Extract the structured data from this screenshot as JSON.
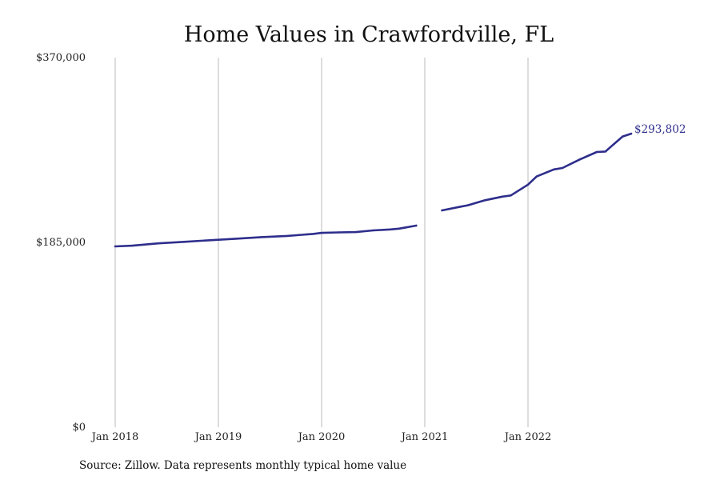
{
  "chart_data": {
    "type": "line",
    "title": "Home Values in Crawfordville, FL",
    "xlabel": "",
    "ylabel": "",
    "ylim": [
      0,
      370000
    ],
    "y_ticks": [
      {
        "value": 0,
        "label": "$0"
      },
      {
        "value": 185000,
        "label": "$185,000"
      },
      {
        "value": 370000,
        "label": "$370,000"
      }
    ],
    "x_ticks": [
      {
        "value": "2018-01",
        "label": "Jan 2018"
      },
      {
        "value": "2019-01",
        "label": "Jan 2019"
      },
      {
        "value": "2020-01",
        "label": "Jan 2020"
      },
      {
        "value": "2021-01",
        "label": "Jan 2021"
      },
      {
        "value": "2022-01",
        "label": "Jan 2022"
      }
    ],
    "grid": "vertical",
    "line_color": "#2e2e8c",
    "end_label": "$293,802",
    "series": [
      {
        "segments": [
          [
            {
              "x": "2018-01",
              "y": 181000
            },
            {
              "x": "2018-03",
              "y": 181700
            },
            {
              "x": "2018-06",
              "y": 184000
            },
            {
              "x": "2018-09",
              "y": 185600
            },
            {
              "x": "2018-12",
              "y": 187200
            },
            {
              "x": "2019-03",
              "y": 188700
            },
            {
              "x": "2019-06",
              "y": 190300
            },
            {
              "x": "2019-09",
              "y": 191500
            },
            {
              "x": "2019-12",
              "y": 193500
            },
            {
              "x": "2020-01",
              "y": 194500
            },
            {
              "x": "2020-03",
              "y": 195000
            },
            {
              "x": "2020-05",
              "y": 195300
            },
            {
              "x": "2020-07",
              "y": 197000
            },
            {
              "x": "2020-09",
              "y": 198000
            },
            {
              "x": "2020-10",
              "y": 198800
            },
            {
              "x": "2020-12",
              "y": 201800
            }
          ],
          [
            {
              "x": "2021-03",
              "y": 217000
            },
            {
              "x": "2021-05",
              "y": 220500
            },
            {
              "x": "2021-06",
              "y": 222200
            },
            {
              "x": "2021-08",
              "y": 227200
            },
            {
              "x": "2021-10",
              "y": 230800
            },
            {
              "x": "2021-11",
              "y": 232000
            },
            {
              "x": "2022-01",
              "y": 242800
            },
            {
              "x": "2022-02",
              "y": 251000
            },
            {
              "x": "2022-04",
              "y": 258000
            },
            {
              "x": "2022-05",
              "y": 259500
            },
            {
              "x": "2022-07",
              "y": 268000
            },
            {
              "x": "2022-09",
              "y": 275500
            },
            {
              "x": "2022-10",
              "y": 276000
            },
            {
              "x": "2022-11",
              "y": 283500
            },
            {
              "x": "2022-12",
              "y": 291000
            },
            {
              "x": "2023-01",
              "y": 293802
            }
          ]
        ]
      }
    ]
  },
  "footer": {
    "source": "Source: Zillow. Data represents monthly typical home value"
  }
}
